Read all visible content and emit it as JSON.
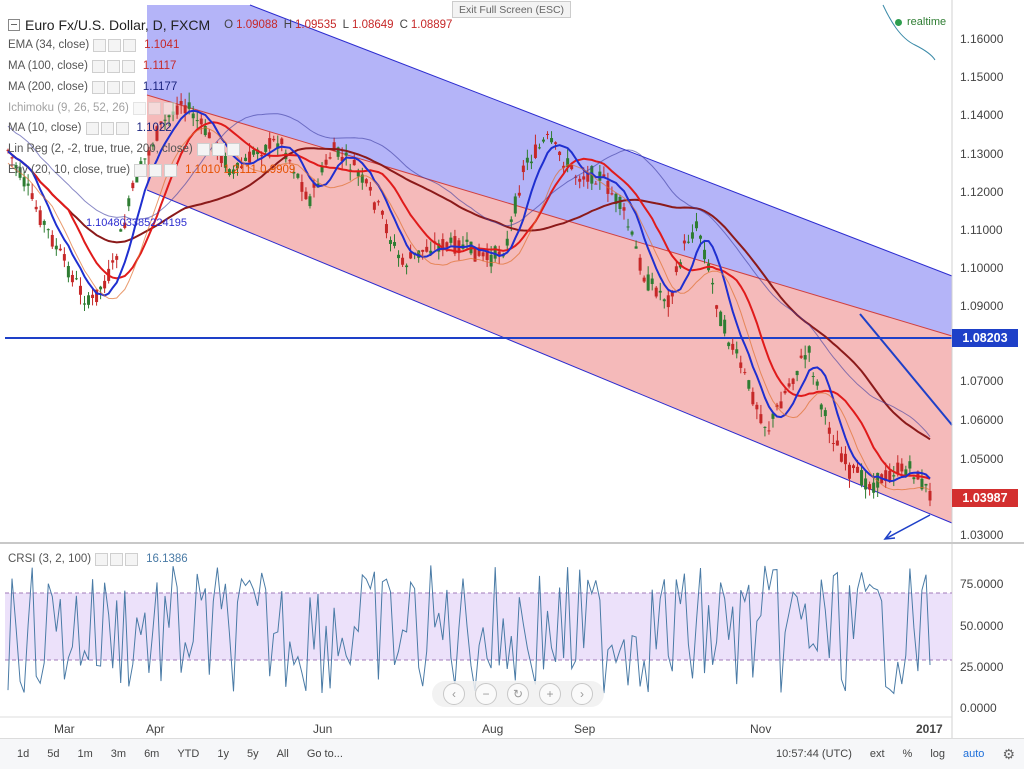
{
  "header": {
    "title": "Euro Fx/U.S. Dollar, D, FXCM",
    "ohlc": [
      {
        "key": "O",
        "value": "1.09088"
      },
      {
        "key": "H",
        "value": "1.09535"
      },
      {
        "key": "L",
        "value": "1.08649"
      },
      {
        "key": "C",
        "value": "1.08897"
      }
    ],
    "exit_fullscreen": "Exit Full Screen (ESC)",
    "realtime": "realtime",
    "collapse_icon": "minus-square-icon"
  },
  "indicators": [
    {
      "label": "EMA (34, close)",
      "value": "1.1041",
      "color": "#c62828"
    },
    {
      "label": "MA (100, close)",
      "value": "1.1117",
      "color": "#c62828"
    },
    {
      "label": "MA (200, close)",
      "value": "1.1177",
      "color": "#1a237e"
    },
    {
      "label": "Ichimoku (9, 26, 52, 26)",
      "value": "",
      "color": "#888888"
    },
    {
      "label": "MA (10, close)",
      "value": "1.1022",
      "color": "#1a237e"
    },
    {
      "label": "Lin Reg (2, -2, true, true, 200, close)",
      "value": "",
      "color": "#555555"
    },
    {
      "label": "Env (20, 10, close, true)",
      "value": "1.1010  1.2111  0.9909",
      "color": "#e65100"
    }
  ],
  "linreg_value": "1.104803385224195",
  "price_axis": [
    "1.16000",
    "1.15000",
    "1.14000",
    "1.13000",
    "1.12000",
    "1.11000",
    "1.10000",
    "1.09000",
    "1.07000",
    "1.06000",
    "1.05000",
    "1.03000"
  ],
  "price_tags": [
    {
      "text": "1.08203",
      "color": "#1e40c8"
    },
    {
      "text": "1.03987",
      "color": "#d32f2f"
    }
  ],
  "crsi": {
    "label": "CRSI (3, 2, 100)",
    "value": "16.1386",
    "axis": [
      "75.0000",
      "50.0000",
      "25.0000",
      "0.0000"
    ]
  },
  "time_axis": [
    "Mar",
    "Apr",
    "Jun",
    "Aug",
    "Sep",
    "Nov",
    "2017"
  ],
  "bottom_bar": {
    "ranges": [
      "1d",
      "5d",
      "1m",
      "3m",
      "6m",
      "YTD",
      "1y",
      "5y",
      "All"
    ],
    "goto": "Go to...",
    "clock": "10:57:44 (UTC)",
    "right": [
      "ext",
      "%",
      "log",
      "auto"
    ]
  },
  "colors": {
    "up_candle": "#2e7d32",
    "down_candle": "#c62828",
    "channel_upper": "#8c8cf0",
    "channel_lower": "#f2a3a3",
    "support_line": "#1e40c8",
    "crsi_band": "#e8dcf7",
    "crsi_line": "#4a7ba6"
  }
}
